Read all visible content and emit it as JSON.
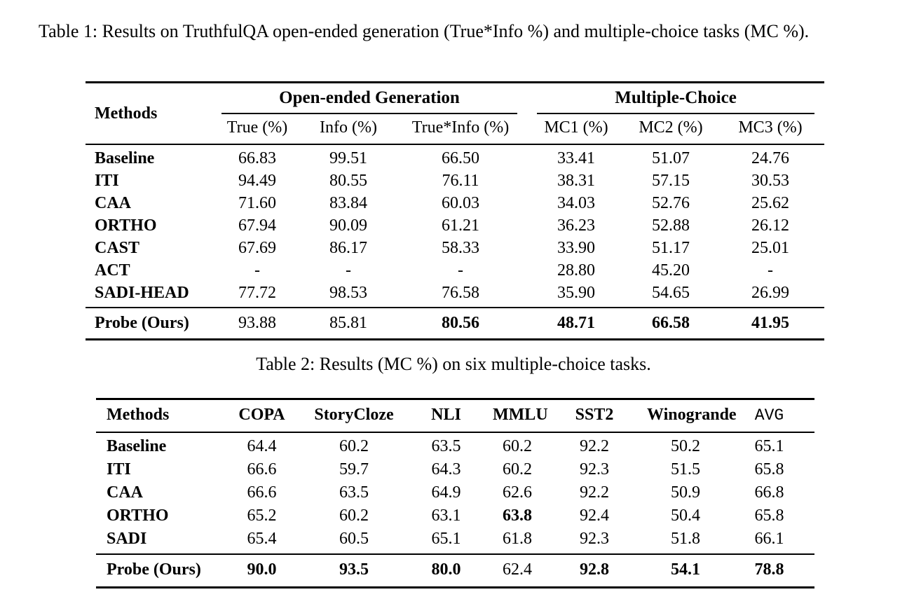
{
  "table1": {
    "caption": "Table 1: Results on TruthfulQA open-ended generation (True*Info %) and multiple-choice tasks (MC %).",
    "col_header": "Methods",
    "groups": [
      {
        "label": "Open-ended Generation",
        "cols": [
          "True (%)",
          "Info (%)",
          "True*Info (%)"
        ]
      },
      {
        "label": "Multiple-Choice",
        "cols": [
          "MC1 (%)",
          "MC2 (%)",
          "MC3 (%)"
        ]
      }
    ],
    "rows": [
      {
        "method": "Baseline",
        "values": [
          "66.83",
          "99.51",
          "66.50",
          "33.41",
          "51.07",
          "24.76"
        ],
        "bold": [
          false,
          false,
          false,
          false,
          false,
          false
        ]
      },
      {
        "method": "ITI",
        "values": [
          "94.49",
          "80.55",
          "76.11",
          "38.31",
          "57.15",
          "30.53"
        ],
        "bold": [
          false,
          false,
          false,
          false,
          false,
          false
        ]
      },
      {
        "method": "CAA",
        "values": [
          "71.60",
          "83.84",
          "60.03",
          "34.03",
          "52.76",
          "25.62"
        ],
        "bold": [
          false,
          false,
          false,
          false,
          false,
          false
        ]
      },
      {
        "method": "ORTHO",
        "values": [
          "67.94",
          "90.09",
          "61.21",
          "36.23",
          "52.88",
          "26.12"
        ],
        "bold": [
          false,
          false,
          false,
          false,
          false,
          false
        ]
      },
      {
        "method": "CAST",
        "values": [
          "67.69",
          "86.17",
          "58.33",
          "33.90",
          "51.17",
          "25.01"
        ],
        "bold": [
          false,
          false,
          false,
          false,
          false,
          false
        ]
      },
      {
        "method": "ACT",
        "values": [
          "-",
          "-",
          "-",
          "28.80",
          "45.20",
          "-"
        ],
        "bold": [
          false,
          false,
          false,
          false,
          false,
          false
        ]
      },
      {
        "method": "SADI-HEAD",
        "values": [
          "77.72",
          "98.53",
          "76.58",
          "35.90",
          "54.65",
          "26.99"
        ],
        "bold": [
          false,
          false,
          false,
          false,
          false,
          false
        ]
      }
    ],
    "final_rows": [
      {
        "method": "Probe (Ours)",
        "values": [
          "93.88",
          "85.81",
          "80.56",
          "48.71",
          "66.58",
          "41.95"
        ],
        "bold": [
          false,
          false,
          true,
          true,
          true,
          true
        ]
      }
    ]
  },
  "table2": {
    "caption": "Table 2: Results (MC %) on six multiple-choice tasks.",
    "headers": [
      "Methods",
      "COPA",
      "StoryCloze",
      "NLI",
      "MMLU",
      "SST2",
      "Winogrande",
      "AVG"
    ],
    "rows": [
      {
        "method": "Baseline",
        "values": [
          "64.4",
          "60.2",
          "63.5",
          "60.2",
          "92.2",
          "50.2",
          "65.1"
        ],
        "bold": [
          false,
          false,
          false,
          false,
          false,
          false,
          false
        ]
      },
      {
        "method": "ITI",
        "values": [
          "66.6",
          "59.7",
          "64.3",
          "60.2",
          "92.3",
          "51.5",
          "65.8"
        ],
        "bold": [
          false,
          false,
          false,
          false,
          false,
          false,
          false
        ]
      },
      {
        "method": "CAA",
        "values": [
          "66.6",
          "63.5",
          "64.9",
          "62.6",
          "92.2",
          "50.9",
          "66.8"
        ],
        "bold": [
          false,
          false,
          false,
          false,
          false,
          false,
          false
        ]
      },
      {
        "method": "ORTHO",
        "values": [
          "65.2",
          "60.2",
          "63.1",
          "63.8",
          "92.4",
          "50.4",
          "65.8"
        ],
        "bold": [
          false,
          false,
          false,
          true,
          false,
          false,
          false
        ]
      },
      {
        "method": "SADI",
        "values": [
          "65.4",
          "60.5",
          "65.1",
          "61.8",
          "92.3",
          "51.8",
          "66.1"
        ],
        "bold": [
          false,
          false,
          false,
          false,
          false,
          false,
          false
        ]
      }
    ],
    "final_rows": [
      {
        "method": "Probe (Ours)",
        "values": [
          "90.0",
          "93.5",
          "80.0",
          "62.4",
          "92.8",
          "54.1",
          "78.8"
        ],
        "bold": [
          true,
          true,
          true,
          false,
          true,
          true,
          true
        ]
      }
    ]
  }
}
